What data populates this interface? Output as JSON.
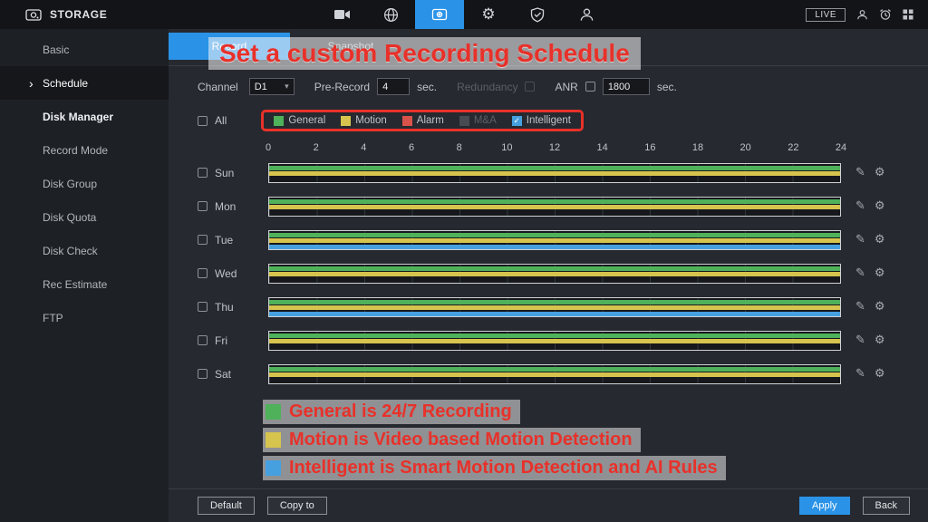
{
  "colors": {
    "accent_blue": "#2a93e8",
    "annotation_red": "#e8312a",
    "general": "#4fb15a",
    "motion": "#d6c44e",
    "alarm": "#d9534a",
    "intelligent": "#46a0e0"
  },
  "icons": {
    "edit_pencil": "✎",
    "settings_gear": "⚙",
    "chevron_down": "▾",
    "check": "✓",
    "active_arrow": "›"
  },
  "top_bar": {
    "title": "STORAGE",
    "live_label": "LIVE",
    "nav": [
      {
        "name": "video-camera",
        "active": false
      },
      {
        "name": "network",
        "active": false
      },
      {
        "name": "storage",
        "active": true
      },
      {
        "name": "system-settings",
        "active": false
      },
      {
        "name": "security",
        "active": false
      },
      {
        "name": "account",
        "active": false
      }
    ]
  },
  "sidebar": {
    "items": [
      {
        "label": "Basic",
        "active": false,
        "bold": false
      },
      {
        "label": "Schedule",
        "active": true,
        "bold": false
      },
      {
        "label": "Disk Manager",
        "active": false,
        "bold": true
      },
      {
        "label": "Record Mode",
        "active": false,
        "bold": false
      },
      {
        "label": "Disk Group",
        "active": false,
        "bold": false
      },
      {
        "label": "Disk Quota",
        "active": false,
        "bold": false
      },
      {
        "label": "Disk Check",
        "active": false,
        "bold": false
      },
      {
        "label": "Rec Estimate",
        "active": false,
        "bold": false
      },
      {
        "label": "FTP",
        "active": false,
        "bold": false
      }
    ]
  },
  "tabs": [
    {
      "label": "Record",
      "active": true
    },
    {
      "label": "Snapshot",
      "active": false
    }
  ],
  "channel_row": {
    "channel_label": "Channel",
    "channel_value": "D1",
    "pre_record_label": "Pre-Record",
    "pre_record_value": "4",
    "pre_record_unit": "sec.",
    "redundancy_label": "Redundancy",
    "anr_label": "ANR",
    "anr_value": "1800",
    "anr_unit": "sec."
  },
  "legend": {
    "all_label": "All",
    "items": [
      {
        "label": "General",
        "color": "#4fb15a",
        "checked": false,
        "disabled": false
      },
      {
        "label": "Motion",
        "color": "#d6c44e",
        "checked": false,
        "disabled": false
      },
      {
        "label": "Alarm",
        "color": "#d9534a",
        "checked": false,
        "disabled": false
      },
      {
        "label": "M&A",
        "color": "#484c52",
        "checked": false,
        "disabled": true
      },
      {
        "label": "Intelligent",
        "color": "#46a0e0",
        "checked": true,
        "disabled": false
      }
    ]
  },
  "schedule": {
    "hour_labels": [
      "0",
      "2",
      "4",
      "6",
      "8",
      "10",
      "12",
      "14",
      "16",
      "18",
      "20",
      "22",
      "24"
    ],
    "range_hours": [
      0,
      24
    ],
    "days": [
      {
        "label": "Sun",
        "bars": [
          {
            "type": "general",
            "start": 0,
            "end": 24
          },
          {
            "type": "motion",
            "start": 0,
            "end": 24
          }
        ]
      },
      {
        "label": "Mon",
        "bars": [
          {
            "type": "general",
            "start": 0,
            "end": 24
          },
          {
            "type": "motion",
            "start": 0,
            "end": 24
          }
        ]
      },
      {
        "label": "Tue",
        "bars": [
          {
            "type": "general",
            "start": 0,
            "end": 24
          },
          {
            "type": "motion",
            "start": 0,
            "end": 24
          },
          {
            "type": "intelligent",
            "start": 0,
            "end": 24
          }
        ]
      },
      {
        "label": "Wed",
        "bars": [
          {
            "type": "general",
            "start": 0,
            "end": 24
          },
          {
            "type": "motion",
            "start": 0,
            "end": 24
          }
        ]
      },
      {
        "label": "Thu",
        "bars": [
          {
            "type": "general",
            "start": 0,
            "end": 24
          },
          {
            "type": "motion",
            "start": 0,
            "end": 24
          },
          {
            "type": "intelligent",
            "start": 0,
            "end": 24
          }
        ]
      },
      {
        "label": "Fri",
        "bars": [
          {
            "type": "general",
            "start": 0,
            "end": 24
          },
          {
            "type": "motion",
            "start": 0,
            "end": 24
          }
        ]
      },
      {
        "label": "Sat",
        "bars": [
          {
            "type": "general",
            "start": 0,
            "end": 24
          },
          {
            "type": "motion",
            "start": 0,
            "end": 24
          }
        ]
      }
    ]
  },
  "annotations": {
    "title": "Set a custom Recording Schedule",
    "notes": [
      {
        "swatch": "general",
        "text": "General is 24/7 Recording"
      },
      {
        "swatch": "motion",
        "text": "Motion is Video based Motion Detection"
      },
      {
        "swatch": "intelligent",
        "text": "Intelligent is Smart Motion Detection and AI Rules"
      }
    ]
  },
  "footer": {
    "default_label": "Default",
    "copy_to_label": "Copy to",
    "apply_label": "Apply",
    "back_label": "Back"
  }
}
